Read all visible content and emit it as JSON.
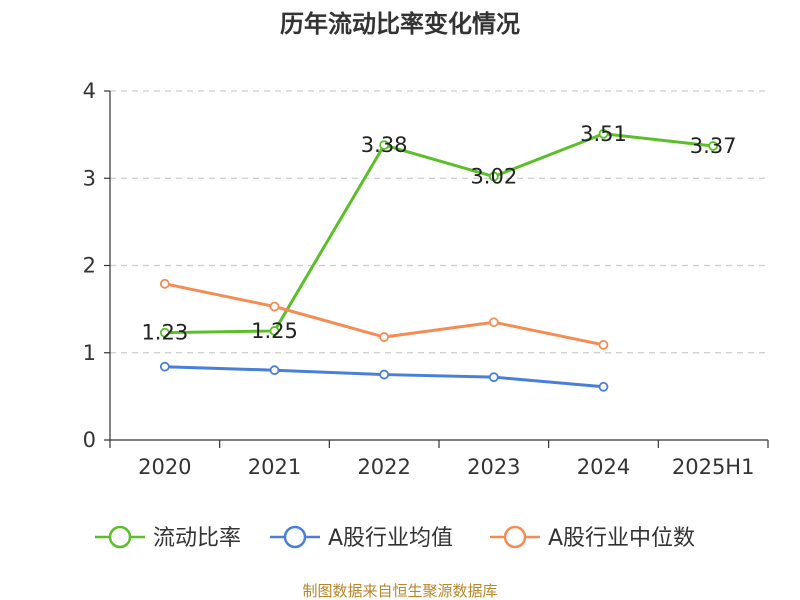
{
  "chart_data": {
    "type": "line",
    "title": "历年流动比率变化情况",
    "categories": [
      "2020",
      "2021",
      "2022",
      "2023",
      "2024",
      "2025H1"
    ],
    "y_ticks": [
      "0",
      "1",
      "2",
      "3",
      "4"
    ],
    "ylim": [
      0,
      4
    ],
    "grid": true,
    "legend_position": "bottom",
    "series": [
      {
        "name": "流动比率",
        "color": "#5cbf2a",
        "values": [
          1.23,
          1.25,
          3.38,
          3.02,
          3.51,
          3.37
        ],
        "labels": [
          "1.23",
          "1.25",
          "3.38",
          "3.02",
          "3.51",
          "3.37"
        ]
      },
      {
        "name": "A股行业均值",
        "color": "#4a7fd8",
        "values": [
          0.84,
          0.8,
          0.75,
          0.72,
          0.61,
          null
        ]
      },
      {
        "name": "A股行业中位数",
        "color": "#f48d55",
        "values": [
          1.79,
          1.53,
          1.18,
          1.35,
          1.09,
          null
        ]
      }
    ]
  },
  "source": "制图数据来自恒生聚源数据库"
}
